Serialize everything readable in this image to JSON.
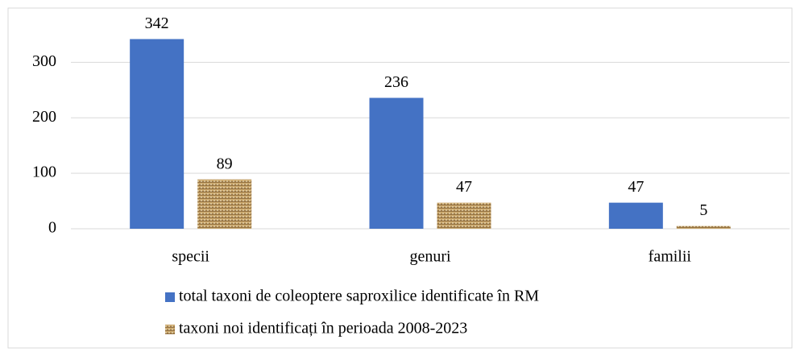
{
  "chart_data": {
    "type": "bar",
    "categories": [
      "specii",
      "genuri",
      "familii"
    ],
    "series": [
      {
        "name": "total taxoni de coleoptere saproxilice identificate în RM",
        "color": "#4472c4",
        "values": [
          342,
          236,
          47
        ]
      },
      {
        "name": "taxoni noi identificați în perioada 2008-2023",
        "color": "#c9a66b",
        "pattern": "woven",
        "values": [
          89,
          47,
          5
        ]
      }
    ],
    "ylim": [
      0,
      350
    ],
    "yticks": [
      0,
      100,
      200,
      300
    ],
    "grid": true,
    "legend": "bottom"
  }
}
